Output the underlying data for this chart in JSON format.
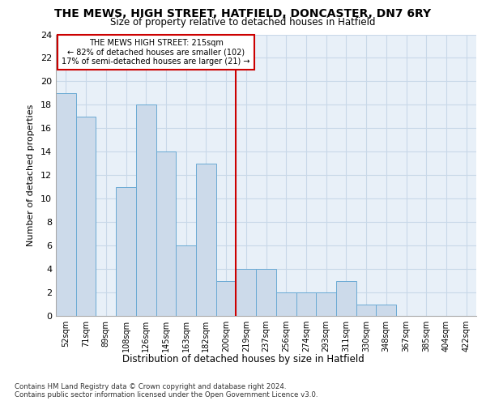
{
  "title_line1": "THE MEWS, HIGH STREET, HATFIELD, DONCASTER, DN7 6RY",
  "title_line2": "Size of property relative to detached houses in Hatfield",
  "xlabel": "Distribution of detached houses by size in Hatfield",
  "ylabel": "Number of detached properties",
  "categories": [
    "52sqm",
    "71sqm",
    "89sqm",
    "108sqm",
    "126sqm",
    "145sqm",
    "163sqm",
    "182sqm",
    "200sqm",
    "219sqm",
    "237sqm",
    "256sqm",
    "274sqm",
    "293sqm",
    "311sqm",
    "330sqm",
    "348sqm",
    "367sqm",
    "385sqm",
    "404sqm",
    "422sqm"
  ],
  "values": [
    19,
    17,
    0,
    11,
    18,
    14,
    6,
    13,
    3,
    4,
    4,
    2,
    2,
    2,
    3,
    1,
    1,
    0,
    0,
    0,
    0
  ],
  "bar_color": "#ccdaea",
  "bar_edge_color": "#6aaad4",
  "grid_color": "#c8d8e8",
  "vline_x": 8.5,
  "vline_color": "#cc0000",
  "annotation_line1": "THE MEWS HIGH STREET: 215sqm",
  "annotation_line2": "← 82% of detached houses are smaller (102)",
  "annotation_line3": "17% of semi-detached houses are larger (21) →",
  "annotation_box_color": "#cc0000",
  "ylim": [
    0,
    24
  ],
  "yticks": [
    0,
    2,
    4,
    6,
    8,
    10,
    12,
    14,
    16,
    18,
    20,
    22,
    24
  ],
  "footnote1": "Contains HM Land Registry data © Crown copyright and database right 2024.",
  "footnote2": "Contains public sector information licensed under the Open Government Licence v3.0.",
  "bg_color": "#e8f0f8"
}
